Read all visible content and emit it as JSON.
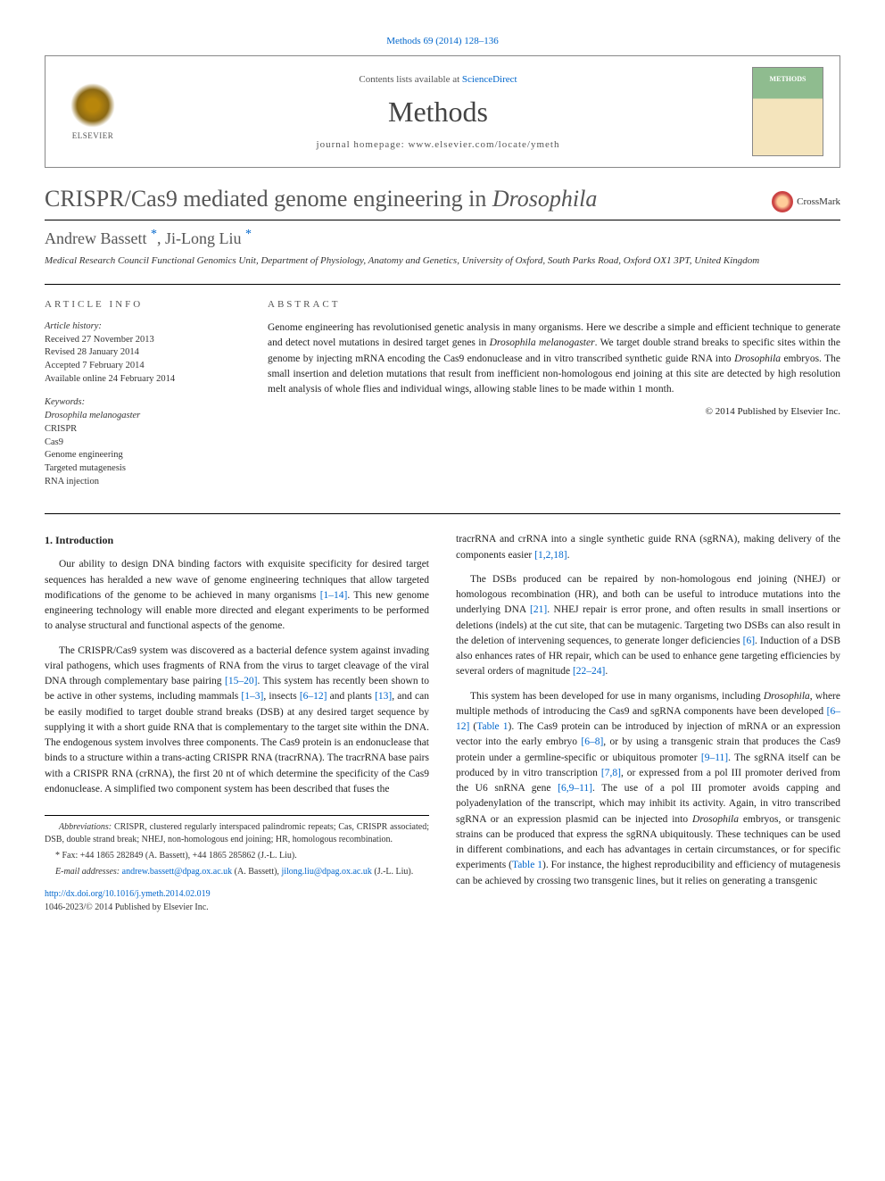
{
  "journal_ref": "Methods 69 (2014) 128–136",
  "header": {
    "elsevier": "ELSEVIER",
    "contents_prefix": "Contents lists available at ",
    "contents_link": "ScienceDirect",
    "journal_name": "Methods",
    "homepage_prefix": "journal homepage: ",
    "homepage": "www.elsevier.com/locate/ymeth"
  },
  "title": "CRISPR/Cas9 mediated genome engineering in <em>Drosophila</em>",
  "crossmark": "CrossMark",
  "authors_html": "Andrew Bassett <span class='asterisk'>*</span>, Ji-Long Liu <span class='asterisk'>*</span>",
  "affiliation": "Medical Research Council Functional Genomics Unit, Department of Physiology, Anatomy and Genetics, University of Oxford, South Parks Road, Oxford OX1 3PT, United Kingdom",
  "article_info": {
    "header": "ARTICLE INFO",
    "history_label": "Article history:",
    "history": [
      "Received 27 November 2013",
      "Revised 28 January 2014",
      "Accepted 7 February 2014",
      "Available online 24 February 2014"
    ],
    "keywords_label": "Keywords:",
    "keywords": [
      "Drosophila melanogaster",
      "CRISPR",
      "Cas9",
      "Genome engineering",
      "Targeted mutagenesis",
      "RNA injection"
    ]
  },
  "abstract": {
    "header": "ABSTRACT",
    "text": "Genome engineering has revolutionised genetic analysis in many organisms. Here we describe a simple and efficient technique to generate and detect novel mutations in desired target genes in <em>Drosophila melanogaster</em>. We target double strand breaks to specific sites within the genome by injecting mRNA encoding the Cas9 endonuclease and in vitro transcribed synthetic guide RNA into <em>Drosophila</em> embryos. The small insertion and deletion mutations that result from inefficient non-homologous end joining at this site are detected by high resolution melt analysis of whole flies and individual wings, allowing stable lines to be made within 1 month.",
    "copyright": "© 2014 Published by Elsevier Inc."
  },
  "intro_heading": "1. Introduction",
  "col1": {
    "p1": "Our ability to design DNA binding factors with exquisite specificity for desired target sequences has heralded a new wave of genome engineering techniques that allow targeted modifications of the genome to be achieved in many organisms <span class='ref-link'>[1–14]</span>. This new genome engineering technology will enable more directed and elegant experiments to be performed to analyse structural and functional aspects of the genome.",
    "p2": "The CRISPR/Cas9 system was discovered as a bacterial defence system against invading viral pathogens, which uses fragments of RNA from the virus to target cleavage of the viral DNA through complementary base pairing <span class='ref-link'>[15–20]</span>. This system has recently been shown to be active in other systems, including mammals <span class='ref-link'>[1–3]</span>, insects <span class='ref-link'>[6–12]</span> and plants <span class='ref-link'>[13]</span>, and can be easily modified to target double strand breaks (DSB) at any desired target sequence by supplying it with a short guide RNA that is complementary to the target site within the DNA. The endogenous system involves three components. The Cas9 protein is an endonuclease that binds to a structure within a trans-acting CRISPR RNA (tracrRNA). The tracrRNA base pairs with a CRISPR RNA (crRNA), the first 20 nt of which determine the specificity of the Cas9 endonuclease. A simplified two component system has been described that fuses the"
  },
  "col2": {
    "p1": "tracrRNA and crRNA into a single synthetic guide RNA (sgRNA), making delivery of the components easier <span class='ref-link'>[1,2,18]</span>.",
    "p2": "The DSBs produced can be repaired by non-homologous end joining (NHEJ) or homologous recombination (HR), and both can be useful to introduce mutations into the underlying DNA <span class='ref-link'>[21]</span>. NHEJ repair is error prone, and often results in small insertions or deletions (indels) at the cut site, that can be mutagenic. Targeting two DSBs can also result in the deletion of intervening sequences, to generate longer deficiencies <span class='ref-link'>[6]</span>. Induction of a DSB also enhances rates of HR repair, which can be used to enhance gene targeting efficiencies by several orders of magnitude <span class='ref-link'>[22–24]</span>.",
    "p3": "This system has been developed for use in many organisms, including <em>Drosophila</em>, where multiple methods of introducing the Cas9 and sgRNA components have been developed <span class='ref-link'>[6–12]</span> (<span class='ref-link'>Table 1</span>). The Cas9 protein can be introduced by injection of mRNA or an expression vector into the early embryo <span class='ref-link'>[6–8]</span>, or by using a transgenic strain that produces the Cas9 protein under a germline-specific or ubiquitous promoter <span class='ref-link'>[9–11]</span>. The sgRNA itself can be produced by in vitro transcription <span class='ref-link'>[7,8]</span>, or expressed from a pol III promoter derived from the U6 snRNA gene <span class='ref-link'>[6,9–11]</span>. The use of a pol III promoter avoids capping and polyadenylation of the transcript, which may inhibit its activity. Again, in vitro transcribed sgRNA or an expression plasmid can be injected into <em>Drosophila</em> embryos, or transgenic strains can be produced that express the sgRNA ubiquitously. These techniques can be used in different combinations, and each has advantages in certain circumstances, or for specific experiments (<span class='ref-link'>Table 1</span>). For instance, the highest reproducibility and efficiency of mutagenesis can be achieved by crossing two transgenic lines, but it relies on generating a transgenic"
  },
  "footnotes": {
    "abbrev": "<em>Abbreviations:</em> CRISPR, clustered regularly interspaced palindromic repeats; Cas, CRISPR associated; DSB, double strand break; NHEJ, non-homologous end joining; HR, homologous recombination.",
    "fax": "* Fax: +44 1865 282849 (A. Bassett), +44 1865 285862 (J.-L. Liu).",
    "email_label": "E-mail addresses:",
    "email1": "andrew.bassett@dpag.ox.ac.uk",
    "email1_author": " (A. Bassett), ",
    "email2": "jilong.liu@dpag.ox.ac.uk",
    "email2_author": " (J.-L. Liu)."
  },
  "doi": "http://dx.doi.org/10.1016/j.ymeth.2014.02.019",
  "issn_copyright": "1046-2023/© 2014 Published by Elsevier Inc."
}
